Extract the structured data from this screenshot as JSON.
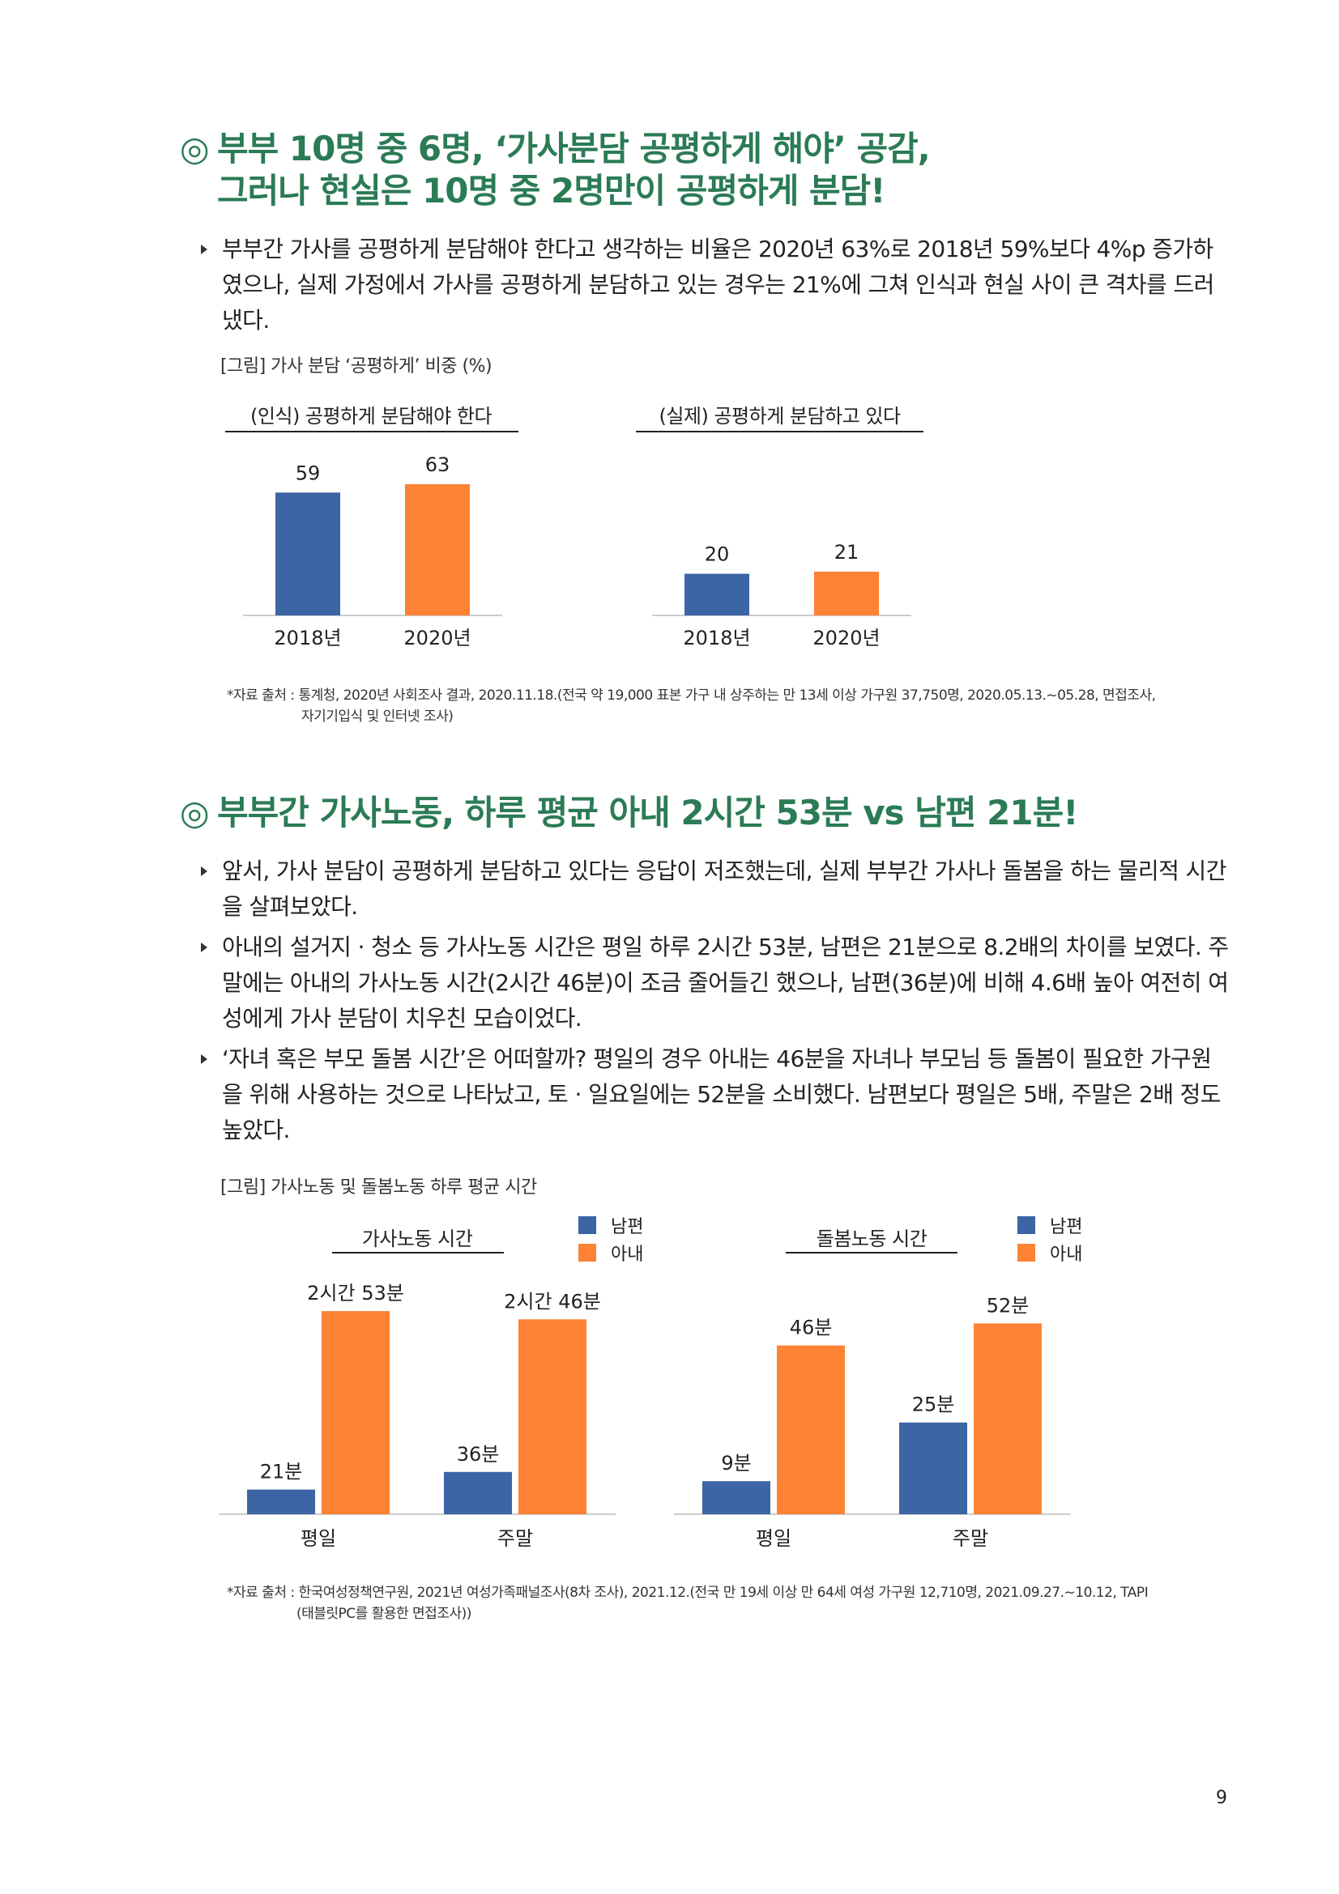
{
  "colors": {
    "heading": "#2b7b55",
    "husband": "#3b65a4",
    "wife": "#fe8234",
    "axis": "#cccccc"
  },
  "section1": {
    "mark": "◎",
    "title_line1": "부부 10명 중 6명, ‘가사분담 공평하게 해야’ 공감,",
    "title_line2": "그러나 현실은 10명 중 2명만이 공평하게 분담!",
    "bullets": [
      "부부간 가사를 공평하게 분담해야 한다고 생각하는 비율은 2020년 63%로 2018년 59%보다 4%p 증가하였으나, 실제 가정에서 가사를 공평하게 분담하고 있는 경우는 21%에 그쳐 인식과 현실 사이 큰 격차를 드러냈다."
    ],
    "figure_caption": "[그림] 가사 분담 ‘공평하게’ 비중 (%)",
    "source_line1": "*자료 출처 : 통계청, 2020년 사회조사 결과, 2020.11.18.(전국 약 19,000 표본 가구 내 상주하는 만 13세 이상 가구원 37,750명, 2020.05.13.~05.28, 면접조사,",
    "source_line2": "자기기입식 및 인터넷 조사)"
  },
  "section2": {
    "mark": "◎",
    "title": "부부간 가사노동, 하루 평균 아내 2시간 53분 vs 남편 21분!",
    "bullets": [
      "앞서, 가사 분담이 공평하게 분담하고 있다는 응답이 저조했는데, 실제 부부간 가사나 돌봄을 하는 물리적 시간을 살펴보았다.",
      "아내의 설거지 · 청소 등 가사노동 시간은 평일 하루 2시간 53분, 남편은 21분으로 8.2배의 차이를 보였다. 주말에는 아내의 가사노동 시간(2시간 46분)이 조금 줄어들긴 했으나, 남편(36분)에 비해 4.6배 높아 여전히 여성에게 가사 분담이 치우친 모습이었다.",
      "‘자녀 혹은 부모 돌봄 시간’은 어떠할까? 평일의 경우 아내는 46분을 자녀나 부모님 등 돌봄이 필요한 가구원을 위해 사용하는 것으로 나타났고, 토 · 일요일에는 52분을 소비했다. 남편보다 평일은 5배, 주말은 2배 정도 높았다."
    ],
    "figure_caption": "[그림] 가사노동 및 돌봄노동 하루 평균 시간",
    "source_line1": "*자료 출처 : 한국여성정책연구원, 2021년 여성가족패널조사(8차 조사), 2021.12.(전국 만 19세 이상 만 64세 여성 가구원 12,710명, 2021.09.27.~10.12, TAPI",
    "source_line2": "(태블릿PC를 활용한 면접조사))"
  },
  "page_number": "9",
  "chart_data": [
    {
      "type": "bar",
      "title": "(인식) 공평하게 분담해야 한다",
      "categories": [
        "2018년",
        "2020년"
      ],
      "values": [
        59,
        63
      ],
      "value_labels": [
        "59",
        "63"
      ],
      "colors": [
        "#3b65a4",
        "#fe8234"
      ],
      "ylim": [
        0,
        70
      ]
    },
    {
      "type": "bar",
      "title": "(실제) 공평하게 분담하고 있다",
      "categories": [
        "2018년",
        "2020년"
      ],
      "values": [
        20,
        21
      ],
      "value_labels": [
        "20",
        "21"
      ],
      "colors": [
        "#3b65a4",
        "#fe8234"
      ],
      "ylim": [
        0,
        70
      ]
    },
    {
      "type": "bar",
      "title": "가사노동 시간",
      "unit": "분",
      "categories": [
        "평일",
        "주말"
      ],
      "series": [
        {
          "name": "남편",
          "values": [
            21,
            36
          ],
          "labels": [
            "21분",
            "36분"
          ],
          "color": "#3b65a4"
        },
        {
          "name": "아내",
          "values": [
            173,
            166
          ],
          "labels": [
            "2시간 53분",
            "2시간 46분"
          ],
          "color": "#fe8234"
        }
      ],
      "ylim": [
        0,
        200
      ]
    },
    {
      "type": "bar",
      "title": "돌봄노동 시간",
      "unit": "분",
      "categories": [
        "평일",
        "주말"
      ],
      "series": [
        {
          "name": "남편",
          "values": [
            9,
            25
          ],
          "labels": [
            "9분",
            "25분"
          ],
          "color": "#3b65a4"
        },
        {
          "name": "아내",
          "values": [
            46,
            52
          ],
          "labels": [
            "46분",
            "52분"
          ],
          "color": "#fe8234"
        }
      ],
      "ylim": [
        0,
        64
      ]
    }
  ]
}
